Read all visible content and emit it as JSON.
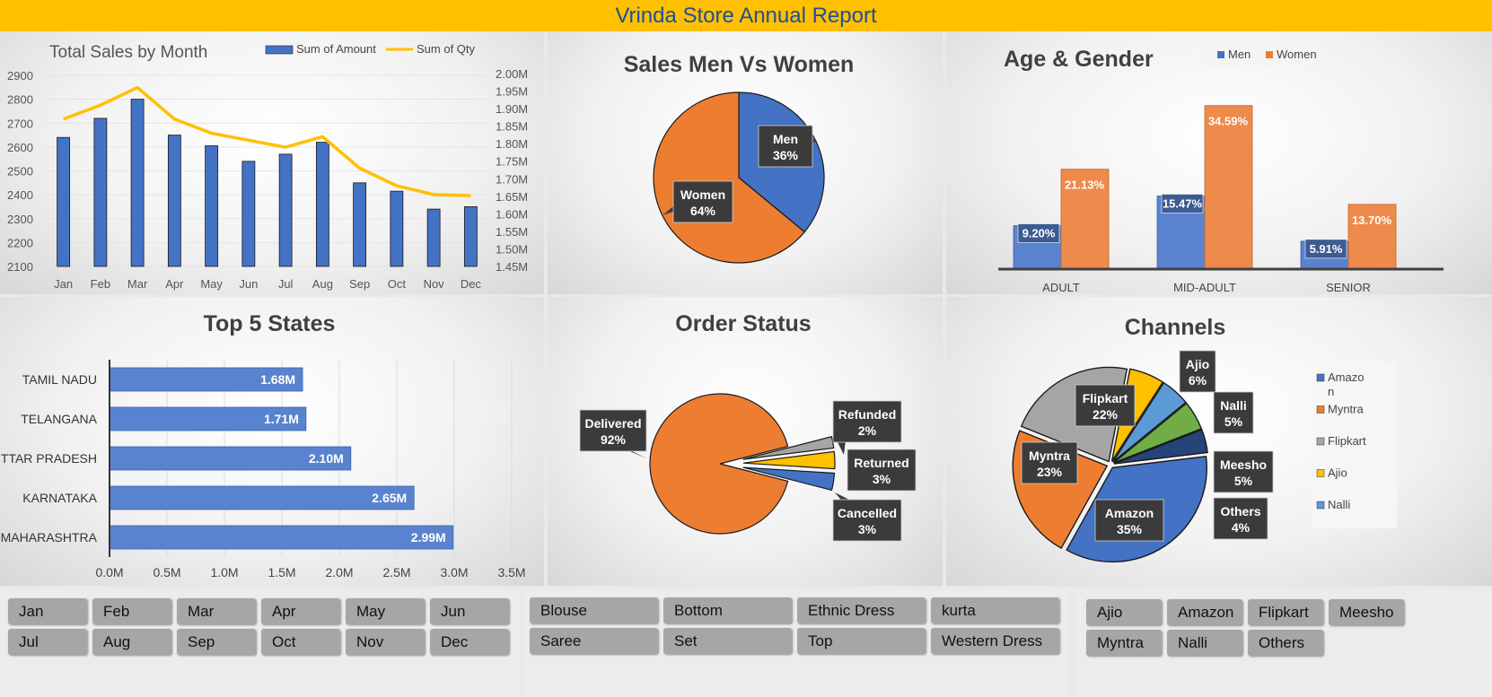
{
  "report": {
    "title": "Vrinda Store Annual Report"
  },
  "chart_data": [
    {
      "id": "monthly",
      "type": "bar",
      "title": "Total Sales by Month",
      "categories": [
        "Jan",
        "Feb",
        "Mar",
        "Apr",
        "May",
        "Jun",
        "Jul",
        "Aug",
        "Sep",
        "Oct",
        "Nov",
        "Dec"
      ],
      "series": [
        {
          "name": "Sum of Amount",
          "axis": "left",
          "kind": "bar",
          "color": "#4472c4",
          "values": [
            2640,
            2720,
            2800,
            2650,
            2605,
            2540,
            2570,
            2620,
            2450,
            2415,
            2340,
            2350
          ]
        },
        {
          "name": "Sum of Qty",
          "axis": "right",
          "kind": "line",
          "color": "#ffc000",
          "values": [
            1.87,
            1.91,
            1.96,
            1.87,
            1.83,
            1.81,
            1.79,
            1.82,
            1.73,
            1.68,
            1.655,
            1.652
          ]
        }
      ],
      "ylim_left": [
        2100,
        2900
      ],
      "yticks_left": [
        "2900",
        "2800",
        "2700",
        "2600",
        "2500",
        "2400",
        "2300",
        "2200",
        "2100"
      ],
      "ylim_right": [
        1.45,
        2.0
      ],
      "yticks_right": [
        "2.00M",
        "1.95M",
        "1.90M",
        "1.85M",
        "1.80M",
        "1.75M",
        "1.70M",
        "1.65M",
        "1.60M",
        "1.55M",
        "1.50M",
        "1.45M"
      ],
      "legend": "top-right"
    },
    {
      "id": "gender",
      "type": "pie",
      "title": "Sales Men Vs Women",
      "slices": [
        {
          "label": "Men",
          "value": 36,
          "display": "36%",
          "color": "#4472c4"
        },
        {
          "label": "Women",
          "value": 64,
          "display": "64%",
          "color": "#ed7d31"
        }
      ]
    },
    {
      "id": "age_gender",
      "type": "bar",
      "title": "Age & Gender",
      "categories": [
        "ADULT",
        "MID-ADULT",
        "SENIOR"
      ],
      "series": [
        {
          "name": "Men",
          "color": "#4472c4",
          "values": [
            9.2,
            15.47,
            5.91
          ],
          "labels": [
            "9.20%",
            "15.47%",
            "5.91%"
          ]
        },
        {
          "name": "Women",
          "color": "#ed7d31",
          "values": [
            21.13,
            34.59,
            13.7
          ],
          "labels": [
            "21.13%",
            "34.59%",
            "13.70%"
          ]
        }
      ],
      "ylim": [
        0,
        37
      ],
      "legend": "top-right"
    },
    {
      "id": "states",
      "type": "bar",
      "orientation": "horizontal",
      "title": "Top 5 States",
      "categories": [
        "TAMIL NADU",
        "TELANGANA",
        "UTTAR PRADESH",
        "KARNATAKA",
        "MAHARASHTRA"
      ],
      "values": [
        1.68,
        1.71,
        2.1,
        2.65,
        2.99
      ],
      "labels": [
        "1.68M",
        "1.71M",
        "2.10M",
        "2.65M",
        "2.99M"
      ],
      "xlim": [
        0,
        3.5
      ],
      "xticks": [
        "0.0M",
        "0.5M",
        "1.0M",
        "1.5M",
        "2.0M",
        "2.5M",
        "3.0M",
        "3.5M"
      ],
      "color": "#4472c4"
    },
    {
      "id": "order_status",
      "type": "pie",
      "title": "Order Status",
      "slices": [
        {
          "label": "Delivered",
          "value": 92,
          "display": "92%",
          "color": "#ed7d31"
        },
        {
          "label": "Refunded",
          "value": 2,
          "display": "2%",
          "color": "#a5a5a5"
        },
        {
          "label": "Returned",
          "value": 3,
          "display": "3%",
          "color": "#ffc000"
        },
        {
          "label": "Cancelled",
          "value": 3,
          "display": "3%",
          "color": "#4472c4"
        }
      ]
    },
    {
      "id": "channels",
      "type": "pie",
      "title": "Channels",
      "slices": [
        {
          "label": "Amazon",
          "value": 35,
          "display": "35%",
          "color": "#4472c4"
        },
        {
          "label": "Myntra",
          "value": 23,
          "display": "23%",
          "color": "#ed7d31"
        },
        {
          "label": "Flipkart",
          "value": 22,
          "display": "22%",
          "color": "#a5a5a5"
        },
        {
          "label": "Ajio",
          "value": 6,
          "display": "6%",
          "color": "#ffc000"
        },
        {
          "label": "Nalli",
          "value": 5,
          "display": "5%",
          "color": "#5b9bd5"
        },
        {
          "label": "Meesho",
          "value": 5,
          "display": "5%",
          "color": "#70ad47"
        },
        {
          "label": "Others",
          "value": 4,
          "display": "4%",
          "color": "#264478"
        }
      ],
      "legend_entries": [
        "Amazo\nn",
        "Myntra",
        "Flipkart",
        "Ajio",
        "Nalli"
      ],
      "legend": "right"
    }
  ],
  "slicers": {
    "months": [
      "Jan",
      "Feb",
      "Mar",
      "Apr",
      "May",
      "Jun",
      "Jul",
      "Aug",
      "Sep",
      "Oct",
      "Nov",
      "Dec"
    ],
    "categories": [
      "Blouse",
      "Bottom",
      "Ethnic Dress",
      "kurta",
      "Saree",
      "Set",
      "Top",
      "Western Dress"
    ],
    "channels": [
      "Ajio",
      "Amazon",
      "Flipkart",
      "Meesho",
      "Myntra",
      "Nalli",
      "Others"
    ]
  }
}
